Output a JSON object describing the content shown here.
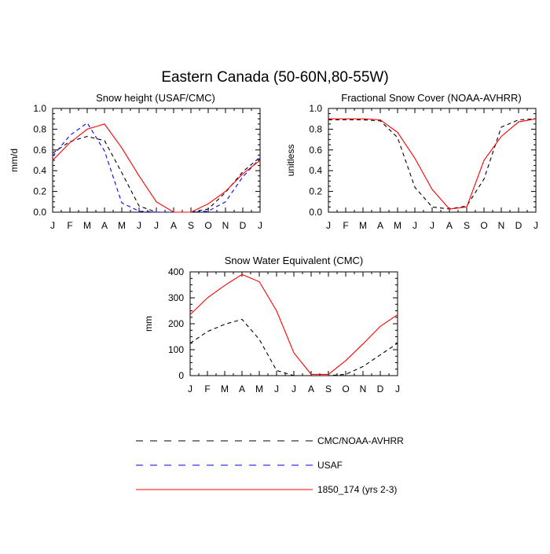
{
  "figure": {
    "title": "Eastern Canada (50-60N,80-55W)"
  },
  "series_styles": {
    "cmc": {
      "name": "CMC/NOAA-AVHRR",
      "color": "#000000",
      "dash": "dashed"
    },
    "usaf": {
      "name": "USAF",
      "color": "#0000ff",
      "dash": "dashed"
    },
    "model": {
      "name": "1850_174 (yrs 2-3)",
      "color": "#ff0000",
      "dash": "solid"
    }
  },
  "legend": {
    "entries": [
      {
        "key": "cmc",
        "label": "CMC/NOAA-AVHRR"
      },
      {
        "key": "usaf",
        "label": "USAF"
      },
      {
        "key": "model",
        "label": "1850_174 (yrs 2-3)"
      }
    ]
  },
  "chart_data": [
    {
      "id": "snow-height",
      "type": "line",
      "title": "Snow height (USAF/CMC)",
      "xlabel": "",
      "ylabel": "mm/d",
      "categories": [
        "J",
        "F",
        "M",
        "A",
        "M",
        "J",
        "J",
        "A",
        "S",
        "O",
        "N",
        "D",
        "J"
      ],
      "ylim": [
        0,
        1.0
      ],
      "yticks": [
        "0.0",
        "0.2",
        "0.4",
        "0.6",
        "0.8",
        "1.0"
      ],
      "grid": false,
      "series": [
        {
          "key": "cmc",
          "values": [
            0.57,
            0.68,
            0.73,
            0.69,
            0.38,
            0.06,
            0.0,
            0.0,
            0.0,
            0.03,
            0.19,
            0.39,
            0.53
          ]
        },
        {
          "key": "usaf",
          "values": [
            0.54,
            0.74,
            0.86,
            0.59,
            0.09,
            0.01,
            0.0,
            0.0,
            0.0,
            0.01,
            0.1,
            0.34,
            0.52
          ]
        },
        {
          "key": "model",
          "values": [
            0.5,
            0.67,
            0.8,
            0.85,
            0.62,
            0.35,
            0.1,
            0.0,
            0.0,
            0.08,
            0.2,
            0.37,
            0.5
          ]
        }
      ]
    },
    {
      "id": "fractional-snow-cover",
      "type": "line",
      "title": "Fractional Snow Cover (NOAA-AVHRR)",
      "xlabel": "",
      "ylabel": "unitless",
      "categories": [
        "J",
        "F",
        "M",
        "A",
        "M",
        "J",
        "J",
        "A",
        "S",
        "O",
        "N",
        "D",
        "J"
      ],
      "ylim": [
        0,
        1.0
      ],
      "yticks": [
        "0.0",
        "0.2",
        "0.4",
        "0.6",
        "0.8",
        "1.0"
      ],
      "grid": false,
      "series": [
        {
          "key": "cmc",
          "values": [
            0.89,
            0.89,
            0.89,
            0.88,
            0.72,
            0.24,
            0.05,
            0.03,
            0.06,
            0.32,
            0.82,
            0.89,
            0.9
          ]
        },
        {
          "key": "model",
          "values": [
            0.9,
            0.9,
            0.9,
            0.89,
            0.77,
            0.52,
            0.22,
            0.03,
            0.05,
            0.5,
            0.73,
            0.87,
            0.9
          ]
        }
      ]
    },
    {
      "id": "snow-water-equivalent",
      "type": "line",
      "title": "Snow Water Equivalent (CMC)",
      "xlabel": "",
      "ylabel": "mm",
      "categories": [
        "J",
        "F",
        "M",
        "A",
        "M",
        "J",
        "J",
        "A",
        "S",
        "O",
        "N",
        "D",
        "J"
      ],
      "ylim": [
        0,
        400
      ],
      "yticks": [
        "0",
        "100",
        "200",
        "300",
        "400"
      ],
      "grid": false,
      "series": [
        {
          "key": "cmc",
          "values": [
            125,
            170,
            198,
            217,
            140,
            20,
            0,
            0,
            0,
            5,
            35,
            80,
            125
          ]
        },
        {
          "key": "model",
          "values": [
            235,
            300,
            348,
            390,
            362,
            250,
            88,
            5,
            5,
            58,
            122,
            190,
            235
          ]
        }
      ]
    }
  ]
}
